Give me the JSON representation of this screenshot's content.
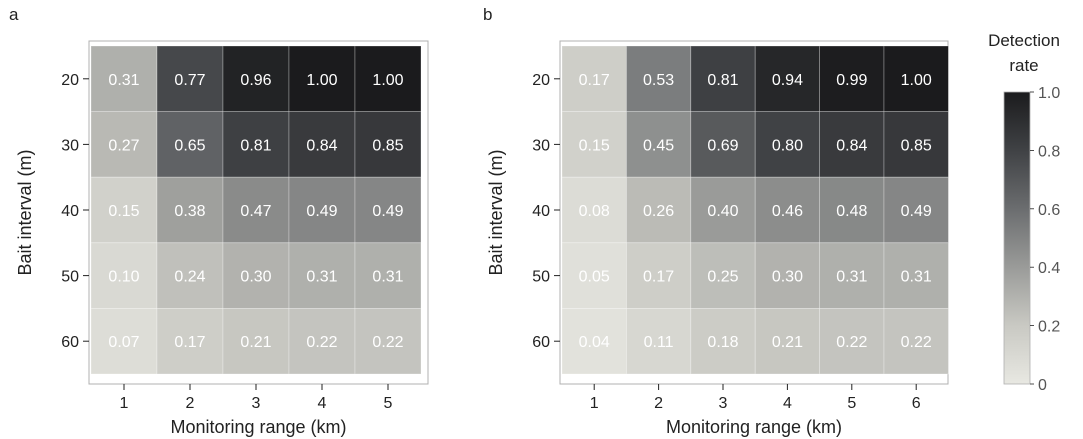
{
  "chart_data": [
    {
      "type": "heatmap",
      "panel_label": "a",
      "xlabel": "Monitoring range (km)",
      "ylabel": "Bait interval (m)",
      "x_categories": [
        "1",
        "2",
        "3",
        "4",
        "5"
      ],
      "y_categories": [
        "20",
        "30",
        "40",
        "50",
        "60"
      ],
      "values": [
        [
          0.31,
          0.77,
          0.96,
          1.0,
          1.0
        ],
        [
          0.27,
          0.65,
          0.81,
          0.84,
          0.85
        ],
        [
          0.15,
          0.38,
          0.47,
          0.49,
          0.49
        ],
        [
          0.1,
          0.24,
          0.3,
          0.31,
          0.31
        ],
        [
          0.07,
          0.17,
          0.21,
          0.22,
          0.22
        ]
      ]
    },
    {
      "type": "heatmap",
      "panel_label": "b",
      "xlabel": "Monitoring range (km)",
      "ylabel": "Bait interval (m)",
      "x_categories": [
        "1",
        "2",
        "3",
        "4",
        "5",
        "6"
      ],
      "y_categories": [
        "20",
        "30",
        "40",
        "50",
        "60"
      ],
      "values": [
        [
          0.17,
          0.53,
          0.81,
          0.94,
          0.99,
          1.0
        ],
        [
          0.15,
          0.45,
          0.69,
          0.8,
          0.84,
          0.85
        ],
        [
          0.08,
          0.26,
          0.4,
          0.46,
          0.48,
          0.49
        ],
        [
          0.05,
          0.17,
          0.25,
          0.3,
          0.31,
          0.31
        ],
        [
          0.04,
          0.11,
          0.18,
          0.21,
          0.22,
          0.22
        ]
      ]
    }
  ],
  "colorbar": {
    "title_lines": [
      "Detection",
      "rate"
    ],
    "range": [
      0,
      1
    ],
    "ticks": [
      "0",
      "0.2",
      "0.4",
      "0.6",
      "0.8",
      "1.0"
    ],
    "color_low": "#e8e8e2",
    "color_high": "#1b1b1d"
  },
  "colors": {
    "cell_text": "#ffffff",
    "frame": "#b0b0b0",
    "axis_text": "#222222"
  }
}
